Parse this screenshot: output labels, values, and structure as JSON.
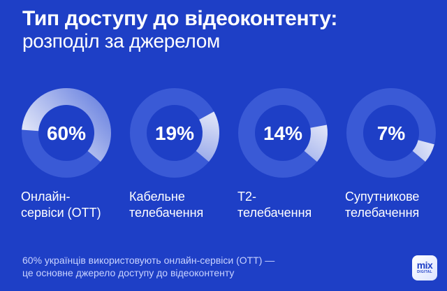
{
  "title": "Тип доступу до відеоконтенту:",
  "subtitle": "розподіл за джерелом",
  "chart_data": {
    "type": "pie",
    "title": "Тип доступу до відеоконтенту:",
    "subtitle": "розподіл за джерелом",
    "unit": "%",
    "categories": [
      [
        "Онлайн-",
        "сервіси (ОТТ)"
      ],
      [
        "Кабельне",
        "телебачення"
      ],
      [
        "Т2-",
        "телебачення"
      ],
      [
        "Супутникове",
        "телебачення"
      ]
    ],
    "values": [
      60,
      19,
      14,
      7
    ],
    "value_labels": [
      "60%",
      "19%",
      "14%",
      "7%"
    ]
  },
  "caption": {
    "line1": "60% українців використовують онлайн-сервіси (ОТТ) —",
    "line2": "це основне джерело доступу до відеоконтенту"
  },
  "logo": {
    "main": "mix",
    "sub": "DIGITAL"
  },
  "colors": {
    "background": "#1e3fc6",
    "ring_track": "#3a5ad6",
    "highlight": "#ffffff",
    "text": "#ffffff",
    "caption": "#c9d3ff"
  }
}
